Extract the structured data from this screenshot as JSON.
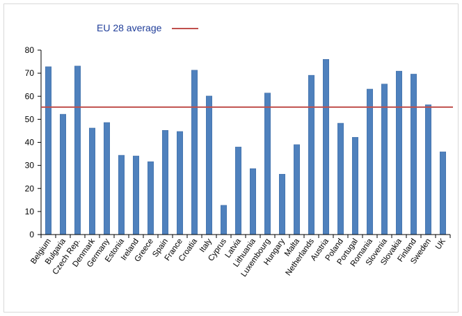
{
  "chart_data": {
    "type": "bar",
    "categories": [
      "Belgium",
      "Bulgaria",
      "Czech Rep.",
      "Denmark",
      "Germany",
      "Estonia",
      "Ireland",
      "Greece",
      "Spain",
      "France",
      "Croatia",
      "Italy",
      "Cyprus",
      "Latvia",
      "Lithuania",
      "Luxembourg",
      "Hungary",
      "Malta",
      "Netherlands",
      "Austria",
      "Poland",
      "Portugal",
      "Romania",
      "Slovenia",
      "Slovakia",
      "Finland",
      "Sweden",
      "UK"
    ],
    "values": [
      72.8,
      52.2,
      73.1,
      46.2,
      48.6,
      34.4,
      34.1,
      31.6,
      45.2,
      44.7,
      71.3,
      60.1,
      12.7,
      38.0,
      28.6,
      61.4,
      26.2,
      39.0,
      69.1,
      76.0,
      48.3,
      42.2,
      63.1,
      65.3,
      70.9,
      69.6,
      56.3,
      35.9
    ],
    "reference_line": {
      "name": "EU 28 average",
      "value": 55.3
    },
    "ylim": [
      0,
      80
    ],
    "yticks": [
      0,
      10,
      20,
      30,
      40,
      50,
      60,
      70,
      80
    ],
    "legend_position": "top",
    "grid": false,
    "title": "",
    "xlabel": "",
    "ylabel": ""
  },
  "colors": {
    "bar": "#4f81bd",
    "bar_edge": "#3c6aa3",
    "average_line": "#c0504d",
    "axis": "#000000",
    "legend_text": "#1f3d99"
  }
}
